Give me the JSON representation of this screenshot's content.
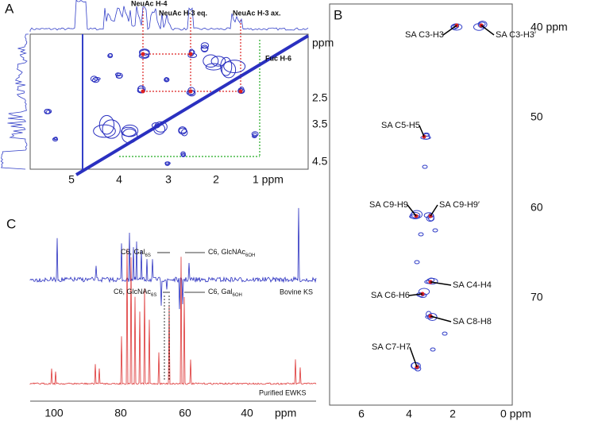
{
  "panels": {
    "A": {
      "label": "A",
      "y_unit": "ppm",
      "annotations": [
        "NeuAc H-4",
        "NeuAc H-3 eq.",
        "NeuAc H-3 ax.",
        "Fuc H-6"
      ],
      "yticks": [
        "2.5",
        "3.5",
        "4.5"
      ],
      "xticks": [
        "5",
        "4",
        "3",
        "2",
        "1 ppm"
      ]
    },
    "B": {
      "label": "B",
      "annotations": [
        "SA C3-H3",
        "SA C3-H3′",
        "SA C5-H5",
        "SA C9-H9",
        "SA C9-H9′",
        "SA C4-H4",
        "SA C6-H6",
        "SA C8-H8",
        "SA C7-H7"
      ],
      "yticks": [
        "40 ppm",
        "50",
        "60",
        "70"
      ],
      "xticks": [
        "6",
        "4",
        "2",
        "0 ppm"
      ]
    },
    "C": {
      "label": "C",
      "annotations": [
        {
          "text": "C6, Gal",
          "sub": "6S"
        },
        {
          "text": "C6, GlcNAc",
          "sub": "6OH"
        },
        {
          "text": "C6, GlcNAc",
          "sub": "6S"
        },
        {
          "text": "C6, Gal",
          "sub": "6OH"
        }
      ],
      "trace_labels": [
        "Bovine KS",
        "Purified EWKS"
      ],
      "xticks": [
        "100",
        "80",
        "60",
        "40",
        "ppm"
      ]
    }
  }
}
